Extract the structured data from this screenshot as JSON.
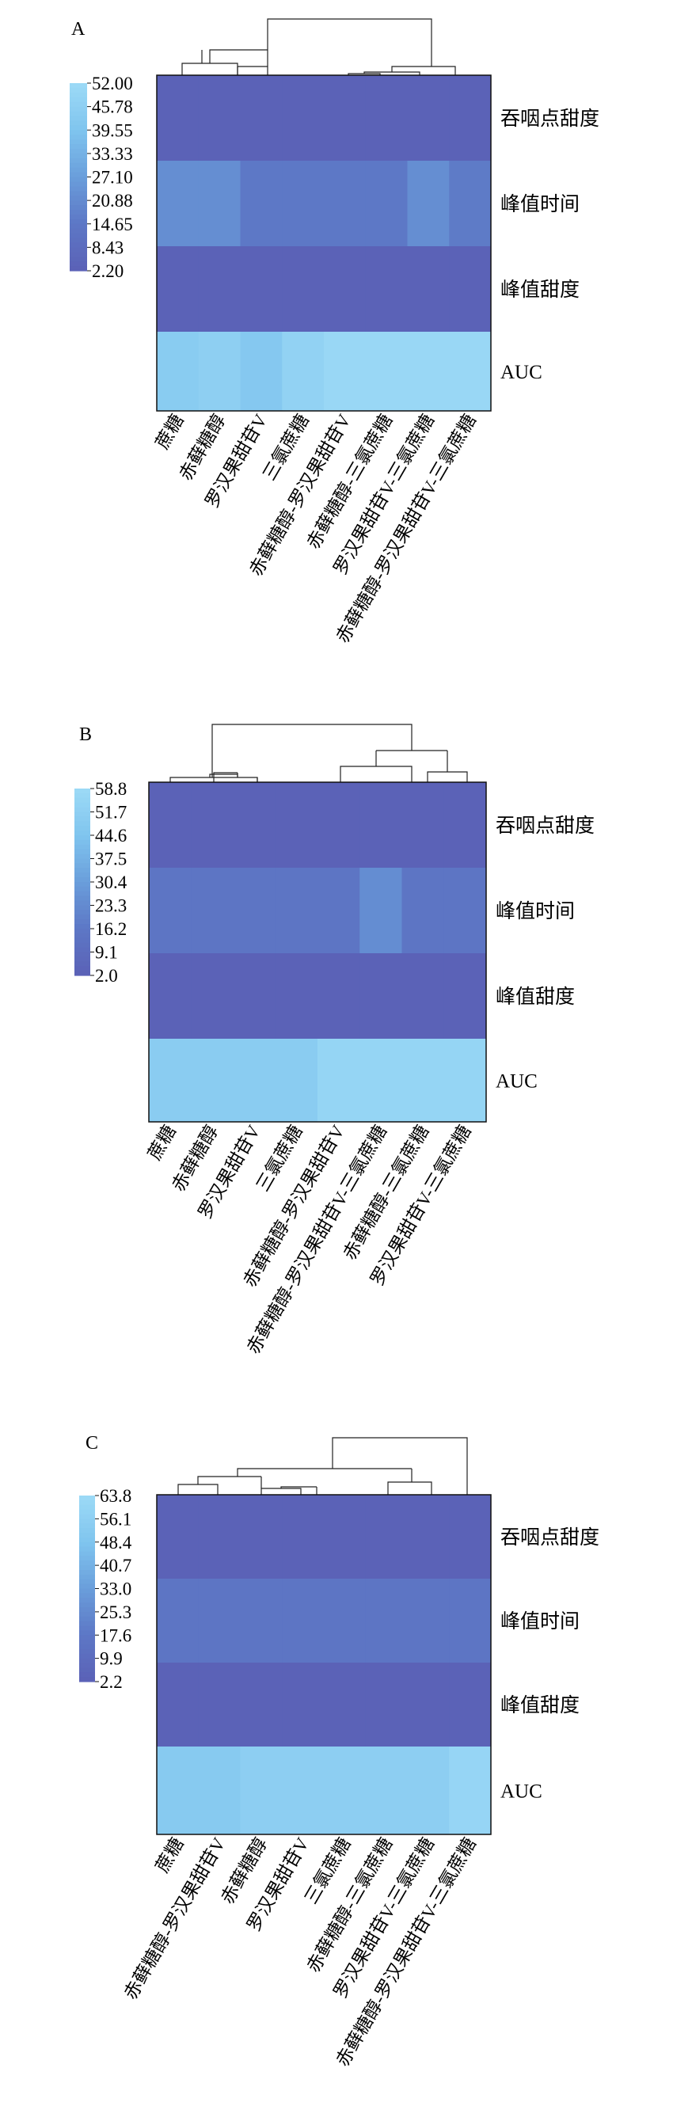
{
  "figure": {
    "palette": [
      "#5B62B7",
      "#5D78C6",
      "#6A9EDB",
      "#7FC4EE",
      "#9BD9F6"
    ]
  },
  "chart_data": [
    {
      "type": "heatmap",
      "panel_label": "A",
      "rows": [
        "吞咽点甜度",
        "峰值时间",
        "峰值甜度",
        "AUC"
      ],
      "columns": [
        "蔗糖",
        "赤藓糖醇",
        "罗汉果甜苷V",
        "三氯蔗糖",
        "赤藓糖醇-罗汉果甜苷V",
        "赤藓糖醇-三氯蔗糖",
        "罗汉果甜苷V-三氯蔗糖",
        "赤藓糖醇-罗汉果甜苷V-三氯蔗糖"
      ],
      "values": [
        [
          2.3,
          2.3,
          2.3,
          2.3,
          2.3,
          2.3,
          2.3,
          2.3
        ],
        [
          22.0,
          22.0,
          14.5,
          14.5,
          14.5,
          14.5,
          22.0,
          15.5
        ],
        [
          2.2,
          2.2,
          2.2,
          2.2,
          2.2,
          2.2,
          2.2,
          2.2
        ],
        [
          44.0,
          46.0,
          42.0,
          48.0,
          51.0,
          51.0,
          51.0,
          51.0
        ]
      ],
      "colorbar_ticks": [
        "52.00",
        "45.78",
        "39.55",
        "33.33",
        "27.10",
        "20.88",
        "14.65",
        "8.43",
        "2.20"
      ],
      "vmin": 2.2,
      "vmax": 52.0
    },
    {
      "type": "heatmap",
      "panel_label": "B",
      "rows": [
        "吞咽点甜度",
        "峰值时间",
        "峰值甜度",
        "AUC"
      ],
      "columns": [
        "蔗糖",
        "赤藓糖醇",
        "罗汉果甜苷V",
        "三氯蔗糖",
        "赤藓糖醇-罗汉果甜苷V",
        "赤藓糖醇-罗汉果甜苷V-三氯蔗糖",
        "赤藓糖醇-三氯蔗糖",
        "罗汉果甜苷V-三氯蔗糖"
      ],
      "values": [
        [
          2.3,
          2.3,
          2.3,
          2.3,
          2.3,
          2.3,
          2.3,
          2.3
        ],
        [
          14.0,
          14.0,
          14.0,
          14.0,
          14.0,
          24.0,
          14.0,
          14.0
        ],
        [
          2.2,
          2.2,
          2.2,
          2.2,
          2.2,
          2.2,
          2.2,
          2.2
        ],
        [
          50.0,
          50.0,
          50.0,
          50.0,
          56.0,
          56.0,
          56.0,
          56.0
        ]
      ],
      "colorbar_ticks": [
        "58.8",
        "51.7",
        "44.6",
        "37.5",
        "30.4",
        "23.3",
        "16.2",
        "9.1",
        "2.0"
      ],
      "vmin": 2.0,
      "vmax": 58.8
    },
    {
      "type": "heatmap",
      "panel_label": "C",
      "rows": [
        "吞咽点甜度",
        "峰值时间",
        "峰值甜度",
        "AUC"
      ],
      "columns": [
        "蔗糖",
        "赤藓糖醇-罗汉果甜苷V",
        "赤藓糖醇",
        "罗汉果甜苷V",
        "三氯蔗糖",
        "赤藓糖醇-三氯蔗糖",
        "罗汉果甜苷V-三氯蔗糖",
        "赤藓糖醇-罗汉果甜苷V-三氯蔗糖"
      ],
      "values": [
        [
          2.4,
          2.4,
          2.4,
          2.4,
          2.4,
          2.4,
          2.4,
          2.4
        ],
        [
          15.5,
          15.5,
          15.5,
          15.5,
          15.5,
          15.5,
          15.5,
          15.5
        ],
        [
          2.3,
          2.3,
          2.3,
          2.3,
          2.3,
          2.3,
          2.3,
          2.3
        ],
        [
          53.0,
          53.0,
          56.0,
          56.0,
          56.0,
          56.0,
          56.0,
          61.0
        ]
      ],
      "colorbar_ticks": [
        "63.8",
        "56.1",
        "48.4",
        "40.7",
        "33.0",
        "25.3",
        "17.6",
        "9.9",
        "2.2"
      ],
      "vmin": 2.2,
      "vmax": 63.8
    }
  ]
}
